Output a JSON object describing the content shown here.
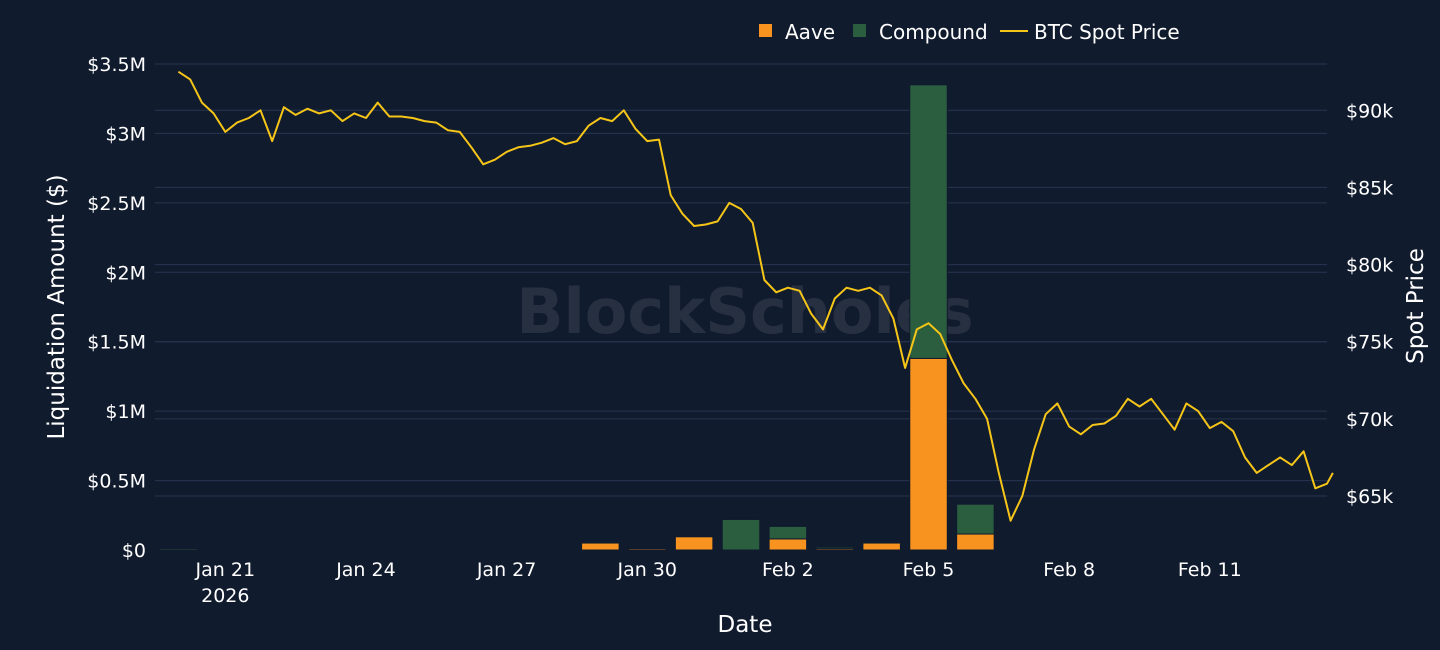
{
  "watermark": "BlockScholes",
  "legend": {
    "aave": "Aave",
    "compound": "Compound",
    "btc": "BTC Spot Price"
  },
  "colors": {
    "background": "#111b2e",
    "grid": "#263550",
    "aave": "#f7931e",
    "compound": "#2a5e3e",
    "btc": "#f5c518"
  },
  "chart_data": {
    "type": "bar",
    "stacked": true,
    "xlabel": "Date",
    "ylabel": "Liquidation Amount ($)",
    "y2label": "Spot Price",
    "x_tick_labels": [
      "Jan 21",
      "Jan 24",
      "Jan 27",
      "Jan 30",
      "Feb 2",
      "Feb 5",
      "Feb 8",
      "Feb 11"
    ],
    "x_tick_sublabel": "2026",
    "y_tick_labels": [
      "$0",
      "$0.5M",
      "$1M",
      "$1.5M",
      "$2M",
      "$2.5M",
      "$3M",
      "$3.5M"
    ],
    "y2_tick_labels": [
      "$65k",
      "$70k",
      "$75k",
      "$80k",
      "$85k",
      "$90k"
    ],
    "ylim": [
      0,
      3500000
    ],
    "y2lim": [
      61500,
      93000
    ],
    "legend_position": "top-center",
    "categories": [
      "2026-01-20",
      "2026-01-21",
      "2026-01-22",
      "2026-01-23",
      "2026-01-24",
      "2026-01-25",
      "2026-01-26",
      "2026-01-27",
      "2026-01-28",
      "2026-01-29",
      "2026-01-30",
      "2026-01-31",
      "2026-02-01",
      "2026-02-02",
      "2026-02-03",
      "2026-02-04",
      "2026-02-05",
      "2026-02-06",
      "2026-02-07",
      "2026-02-08",
      "2026-02-09",
      "2026-02-10",
      "2026-02-11",
      "2026-02-12"
    ],
    "series": [
      {
        "name": "Aave",
        "values": [
          0,
          0,
          0,
          0,
          0,
          0,
          0,
          0,
          0,
          50000,
          10000,
          95000,
          0,
          80000,
          10000,
          50000,
          1380000,
          115000,
          0,
          0,
          0,
          0,
          0,
          0
        ]
      },
      {
        "name": "Compound",
        "values": [
          10000,
          0,
          0,
          5000,
          0,
          5000,
          0,
          0,
          0,
          0,
          5000,
          0,
          220000,
          90000,
          10000,
          0,
          1970000,
          215000,
          5000,
          5000,
          0,
          0,
          0,
          5000
        ]
      }
    ],
    "line_series": {
      "name": "BTC Spot Price",
      "axis": "right",
      "points": [
        [
          "2026-01-20T00:00",
          92500
        ],
        [
          "2026-01-20T06:00",
          92000
        ],
        [
          "2026-01-20T12:00",
          90500
        ],
        [
          "2026-01-20T18:00",
          89800
        ],
        [
          "2026-01-21T00:00",
          88600
        ],
        [
          "2026-01-21T06:00",
          89200
        ],
        [
          "2026-01-21T12:00",
          89500
        ],
        [
          "2026-01-21T18:00",
          90000
        ],
        [
          "2026-01-22T00:00",
          88000
        ],
        [
          "2026-01-22T06:00",
          90200
        ],
        [
          "2026-01-22T12:00",
          89700
        ],
        [
          "2026-01-22T18:00",
          90100
        ],
        [
          "2026-01-23T00:00",
          89800
        ],
        [
          "2026-01-23T06:00",
          90000
        ],
        [
          "2026-01-23T12:00",
          89300
        ],
        [
          "2026-01-23T18:00",
          89800
        ],
        [
          "2026-01-24T00:00",
          89500
        ],
        [
          "2026-01-24T06:00",
          90500
        ],
        [
          "2026-01-24T12:00",
          89600
        ],
        [
          "2026-01-24T18:00",
          89600
        ],
        [
          "2026-01-25T00:00",
          89500
        ],
        [
          "2026-01-25T06:00",
          89300
        ],
        [
          "2026-01-25T12:00",
          89200
        ],
        [
          "2026-01-25T18:00",
          88700
        ],
        [
          "2026-01-26T00:00",
          88600
        ],
        [
          "2026-01-26T06:00",
          87600
        ],
        [
          "2026-01-26T12:00",
          86500
        ],
        [
          "2026-01-26T18:00",
          86800
        ],
        [
          "2026-01-27T00:00",
          87300
        ],
        [
          "2026-01-27T06:00",
          87600
        ],
        [
          "2026-01-27T12:00",
          87700
        ],
        [
          "2026-01-27T18:00",
          87900
        ],
        [
          "2026-01-28T00:00",
          88200
        ],
        [
          "2026-01-28T06:00",
          87800
        ],
        [
          "2026-01-28T12:00",
          88000
        ],
        [
          "2026-01-28T18:00",
          89000
        ],
        [
          "2026-01-29T00:00",
          89500
        ],
        [
          "2026-01-29T06:00",
          89300
        ],
        [
          "2026-01-29T12:00",
          90000
        ],
        [
          "2026-01-29T18:00",
          88800
        ],
        [
          "2026-01-30T00:00",
          88000
        ],
        [
          "2026-01-30T06:00",
          88100
        ],
        [
          "2026-01-30T12:00",
          84500
        ],
        [
          "2026-01-30T18:00",
          83300
        ],
        [
          "2026-01-31T00:00",
          82500
        ],
        [
          "2026-01-31T06:00",
          82600
        ],
        [
          "2026-01-31T12:00",
          82800
        ],
        [
          "2026-01-31T18:00",
          84000
        ],
        [
          "2026-02-01T00:00",
          83600
        ],
        [
          "2026-02-01T06:00",
          82700
        ],
        [
          "2026-02-01T12:00",
          79000
        ],
        [
          "2026-02-01T18:00",
          78200
        ],
        [
          "2026-02-02T00:00",
          78500
        ],
        [
          "2026-02-02T06:00",
          78300
        ],
        [
          "2026-02-02T12:00",
          76800
        ],
        [
          "2026-02-02T18:00",
          75800
        ],
        [
          "2026-02-03T00:00",
          77800
        ],
        [
          "2026-02-03T06:00",
          78500
        ],
        [
          "2026-02-03T12:00",
          78300
        ],
        [
          "2026-02-03T18:00",
          78500
        ],
        [
          "2026-02-04T00:00",
          78000
        ],
        [
          "2026-02-04T06:00",
          76500
        ],
        [
          "2026-02-04T12:00",
          73300
        ],
        [
          "2026-02-04T18:00",
          75800
        ],
        [
          "2026-02-05T00:00",
          76200
        ],
        [
          "2026-02-05T06:00",
          75500
        ],
        [
          "2026-02-05T12:00",
          73800
        ],
        [
          "2026-02-05T18:00",
          72300
        ],
        [
          "2026-02-06T00:00",
          71300
        ],
        [
          "2026-02-06T06:00",
          70000
        ],
        [
          "2026-02-06T12:00",
          66500
        ],
        [
          "2026-02-06T18:00",
          63400
        ],
        [
          "2026-02-07T00:00",
          65000
        ],
        [
          "2026-02-07T06:00",
          68000
        ],
        [
          "2026-02-07T12:00",
          70300
        ],
        [
          "2026-02-07T18:00",
          71000
        ],
        [
          "2026-02-08T00:00",
          69500
        ],
        [
          "2026-02-08T06:00",
          69000
        ],
        [
          "2026-02-08T12:00",
          69600
        ],
        [
          "2026-02-08T18:00",
          69700
        ],
        [
          "2026-02-09T00:00",
          70200
        ],
        [
          "2026-02-09T06:00",
          71300
        ],
        [
          "2026-02-09T12:00",
          70800
        ],
        [
          "2026-02-09T18:00",
          71300
        ],
        [
          "2026-02-10T00:00",
          70300
        ],
        [
          "2026-02-10T06:00",
          69300
        ],
        [
          "2026-02-10T12:00",
          71000
        ],
        [
          "2026-02-10T18:00",
          70500
        ],
        [
          "2026-02-11T00:00",
          69400
        ],
        [
          "2026-02-11T06:00",
          69800
        ],
        [
          "2026-02-11T12:00",
          69200
        ],
        [
          "2026-02-11T18:00",
          67500
        ],
        [
          "2026-02-12T00:00",
          66500
        ],
        [
          "2026-02-12T06:00",
          67000
        ],
        [
          "2026-02-12T12:00",
          67500
        ],
        [
          "2026-02-12T18:00",
          67000
        ],
        [
          "2026-02-13T00:00",
          67900
        ],
        [
          "2026-02-13T06:00",
          65500
        ],
        [
          "2026-02-13T12:00",
          65800
        ],
        [
          "2026-02-13T15:00",
          66500
        ]
      ]
    }
  }
}
